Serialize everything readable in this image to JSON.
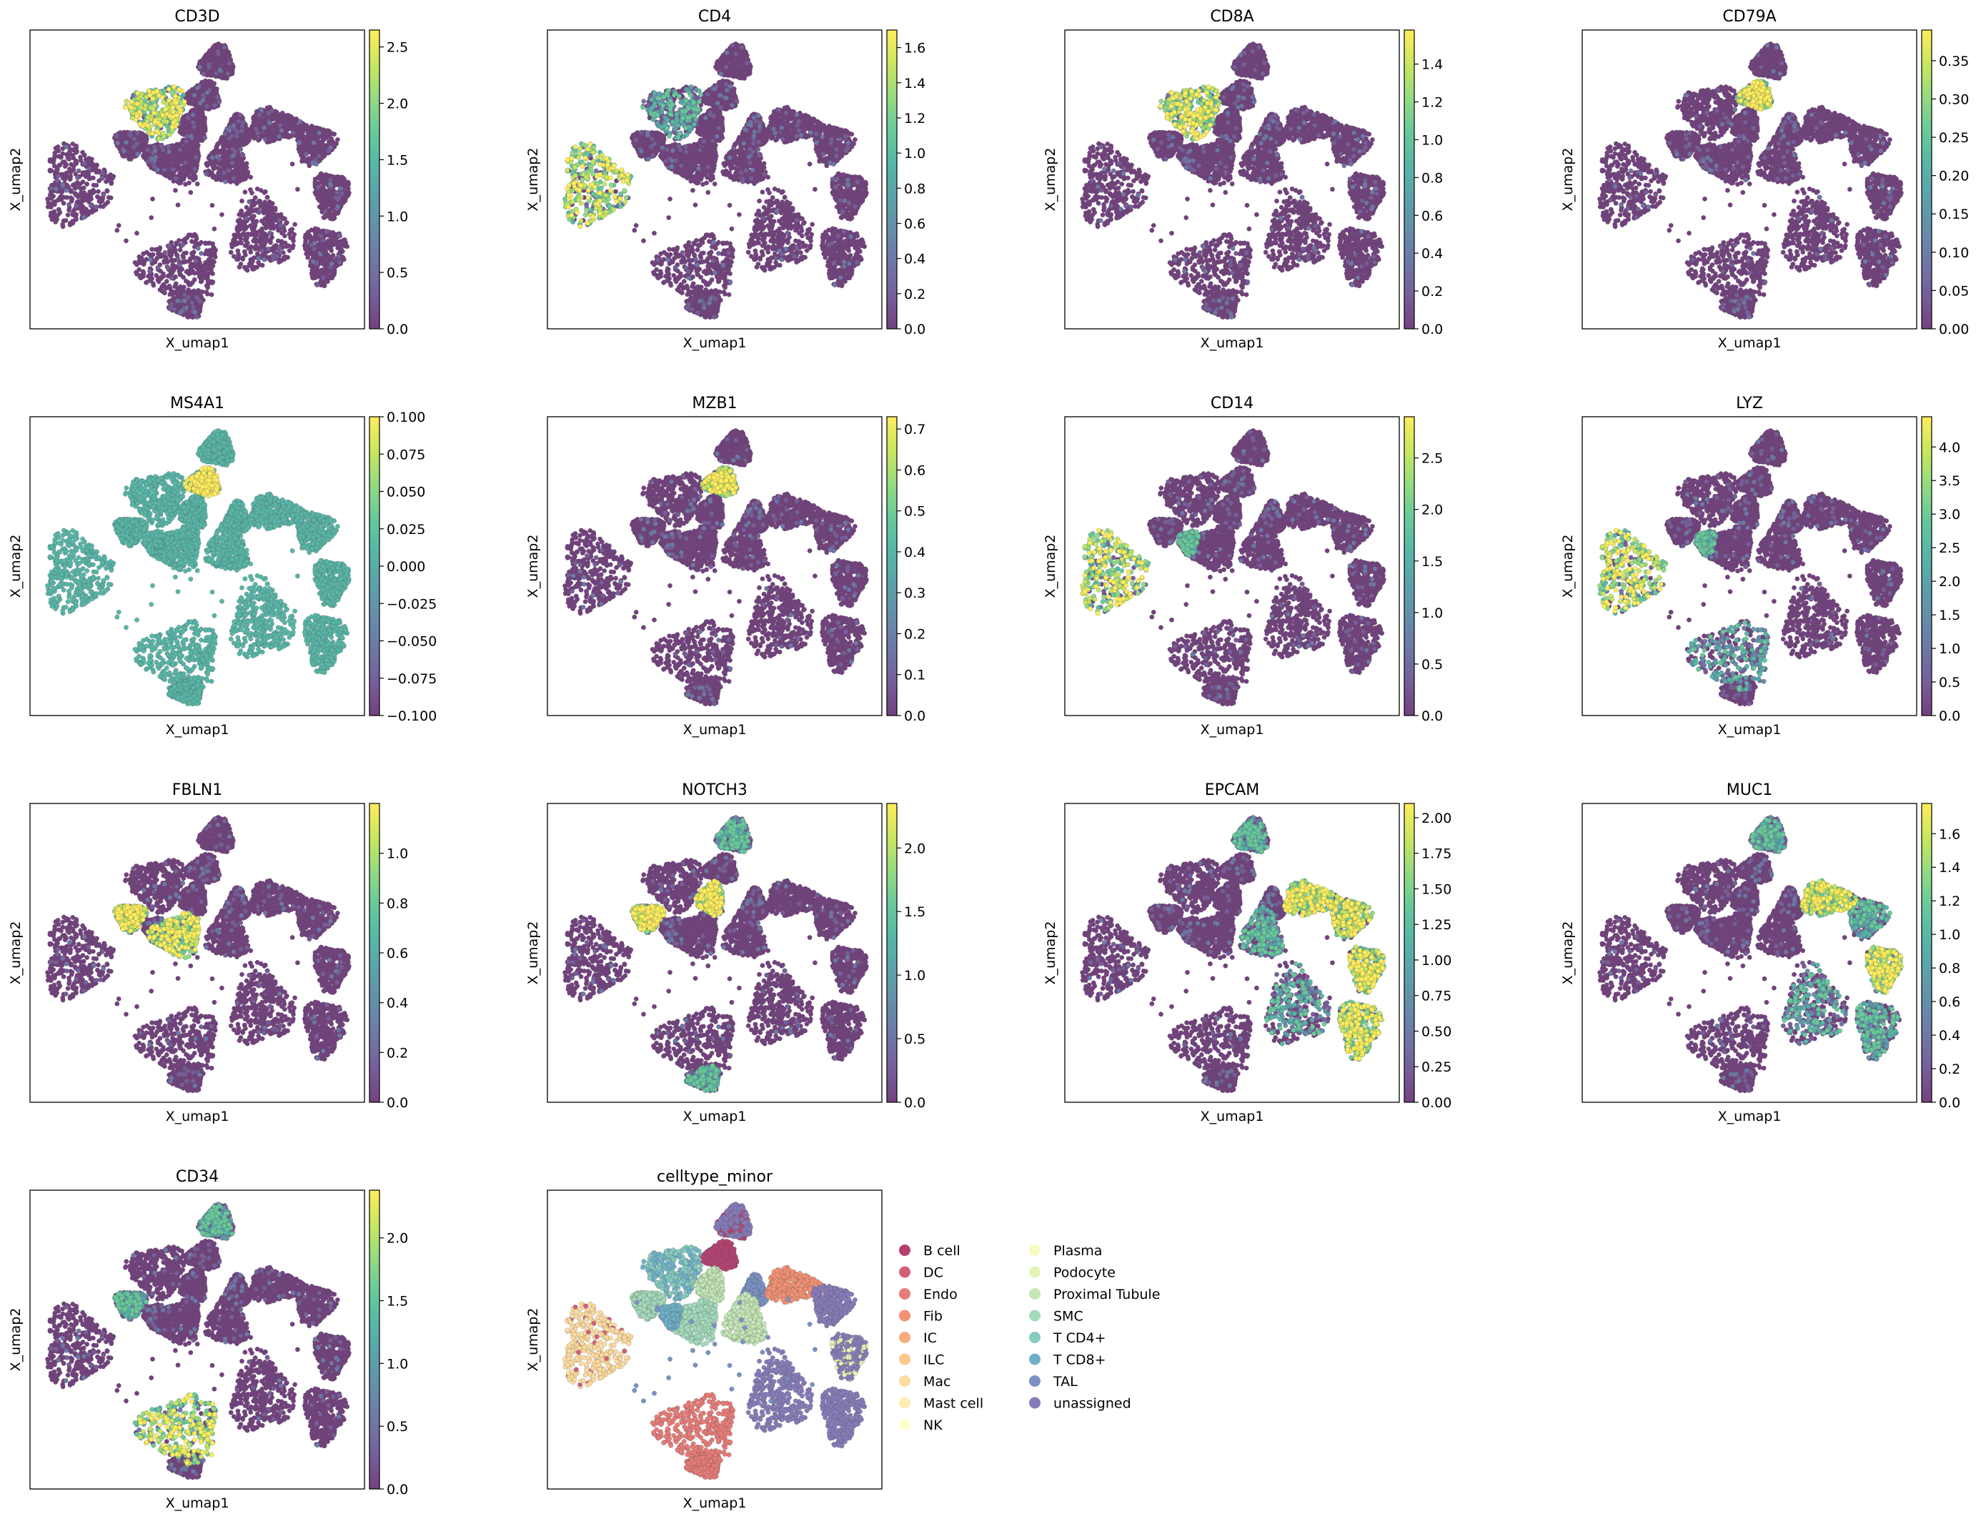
{
  "figure": {
    "x_axis_label": "X_umap1",
    "y_axis_label": "X_umap2"
  },
  "colors": {
    "viridis": [
      "#440154",
      "#482878",
      "#3e4989",
      "#31688e",
      "#26828e",
      "#1f9e89",
      "#35b779",
      "#6ece58",
      "#b5de2b",
      "#fde725"
    ],
    "point_alpha": 0.75
  },
  "chart_data": [
    {
      "type": "scatter",
      "title": "CD3D",
      "colorbar_ticks": [
        "0.0",
        "0.5",
        "1.0",
        "1.5",
        "2.0",
        "2.5"
      ],
      "colorbar_range": [
        0,
        2.65
      ],
      "high_clusters": [
        "tcells"
      ]
    },
    {
      "type": "scatter",
      "title": "CD4",
      "colorbar_ticks": [
        "0.0",
        "0.2",
        "0.4",
        "0.6",
        "0.8",
        "1.0",
        "1.2",
        "1.4",
        "1.6"
      ],
      "colorbar_range": [
        0,
        1.7
      ],
      "high_clusters": [
        "myeloid"
      ],
      "mid_clusters": [
        "tcells"
      ]
    },
    {
      "type": "scatter",
      "title": "CD8A",
      "colorbar_ticks": [
        "0.0",
        "0.2",
        "0.4",
        "0.6",
        "0.8",
        "1.0",
        "1.2",
        "1.4"
      ],
      "colorbar_range": [
        0,
        1.58
      ],
      "high_clusters": [
        "tcells"
      ]
    },
    {
      "type": "scatter",
      "title": "CD79A",
      "colorbar_ticks": [
        "0.00",
        "0.05",
        "0.10",
        "0.15",
        "0.20",
        "0.25",
        "0.30",
        "0.35"
      ],
      "colorbar_range": [
        0,
        0.39
      ],
      "high_clusters": [
        "plasma"
      ]
    },
    {
      "type": "scatter",
      "title": "MS4A1",
      "colorbar_ticks": [
        "−0.100",
        "−0.075",
        "−0.050",
        "−0.025",
        "0.000",
        "0.025",
        "0.050",
        "0.075",
        "0.100"
      ],
      "colorbar_range": [
        -0.1,
        0.1
      ],
      "uniform_level": 0.5,
      "high_clusters": [
        "plasma"
      ]
    },
    {
      "type": "scatter",
      "title": "MZB1",
      "colorbar_ticks": [
        "0.0",
        "0.1",
        "0.2",
        "0.3",
        "0.4",
        "0.5",
        "0.6",
        "0.7"
      ],
      "colorbar_range": [
        0,
        0.73
      ],
      "high_clusters": [
        "plasma"
      ]
    },
    {
      "type": "scatter",
      "title": "CD14",
      "colorbar_ticks": [
        "0.0",
        "0.5",
        "1.0",
        "1.5",
        "2.0",
        "2.5"
      ],
      "colorbar_range": [
        0,
        2.9
      ],
      "high_clusters": [
        "myeloid"
      ],
      "mid_clusters": [
        "pt_right",
        "mid_small"
      ]
    },
    {
      "type": "scatter",
      "title": "LYZ",
      "colorbar_ticks": [
        "0.0",
        "0.5",
        "1.0",
        "1.5",
        "2.0",
        "2.5",
        "3.0",
        "3.5",
        "4.0"
      ],
      "colorbar_range": [
        0,
        4.45
      ],
      "high_clusters": [
        "myeloid"
      ],
      "mid_clusters": [
        "pt_right",
        "mid_small",
        "endo"
      ]
    },
    {
      "type": "scatter",
      "title": "FBLN1",
      "colorbar_ticks": [
        "0.0",
        "0.2",
        "0.4",
        "0.6",
        "0.8",
        "1.0"
      ],
      "colorbar_range": [
        0,
        1.2
      ],
      "high_clusters": [
        "fib_small",
        "fib_mid"
      ]
    },
    {
      "type": "scatter",
      "title": "NOTCH3",
      "colorbar_ticks": [
        "0.0",
        "0.5",
        "1.0",
        "1.5",
        "2.0"
      ],
      "colorbar_range": [
        0,
        2.35
      ],
      "high_clusters": [
        "fib_small",
        "smc"
      ],
      "mid_clusters": [
        "top",
        "endo_lower"
      ]
    },
    {
      "type": "scatter",
      "title": "EPCAM",
      "colorbar_ticks": [
        "0.00",
        "0.25",
        "0.50",
        "0.75",
        "1.00",
        "1.25",
        "1.50",
        "1.75",
        "2.00"
      ],
      "colorbar_range": [
        0,
        2.1
      ],
      "high_clusters": [
        "tal",
        "upper_right",
        "right_mid",
        "right_lower"
      ],
      "mid_clusters": [
        "top",
        "mid_center",
        "big_right"
      ]
    },
    {
      "type": "scatter",
      "title": "MUC1",
      "colorbar_ticks": [
        "0.0",
        "0.2",
        "0.4",
        "0.6",
        "0.8",
        "1.0",
        "1.2",
        "1.4",
        "1.6"
      ],
      "colorbar_range": [
        0,
        1.78
      ],
      "high_clusters": [
        "tal",
        "right_mid"
      ],
      "mid_clusters": [
        "top",
        "upper_right",
        "right_lower",
        "big_right"
      ]
    },
    {
      "type": "scatter",
      "title": "CD34",
      "colorbar_ticks": [
        "0.0",
        "0.5",
        "1.0",
        "1.5",
        "2.0"
      ],
      "colorbar_range": [
        0,
        2.38
      ],
      "high_clusters": [
        "endo"
      ],
      "mid_clusters": [
        "top",
        "fib_small"
      ]
    },
    {
      "type": "scatter",
      "title": "celltype_minor",
      "legend_location": "right",
      "categories": [
        "B cell",
        "DC",
        "Endo",
        "Fib",
        "IC",
        "ILC",
        "Mac",
        "Mast cell",
        "NK",
        "Plasma",
        "Podocyte",
        "Proximal Tubule",
        "SMC",
        "T CD4+",
        "T CD8+",
        "TAL",
        "unassigned"
      ],
      "category_colors": [
        "#9e0142",
        "#c32a4b",
        "#e04f4a",
        "#f06c44",
        "#f98e52",
        "#fdb466",
        "#fdcf7e",
        "#fee89a",
        "#fffebe",
        "#f2faac",
        "#d8ef9b",
        "#b1df9f",
        "#86cfa5",
        "#5fb9a9",
        "#3f96b7",
        "#4d6eb0",
        "#5e4fa2"
      ],
      "cluster_assignment": {
        "myeloid": "Mac",
        "endo": "Endo",
        "endo_lower": "Endo",
        "tcells": "T CD4+",
        "plasma": "B cell",
        "fib_mid": "SMC",
        "fib_small": "SMC",
        "smc": "Proximal Tubule",
        "tal": "Fib",
        "upper_right": "unassigned",
        "right_mid": "unassigned",
        "right_lower": "unassigned",
        "big_right": "unassigned",
        "mid_center": "Proximal Tubule",
        "top": "unassigned",
        "mid_small": "T CD8+",
        "bridge": "TAL"
      }
    }
  ]
}
